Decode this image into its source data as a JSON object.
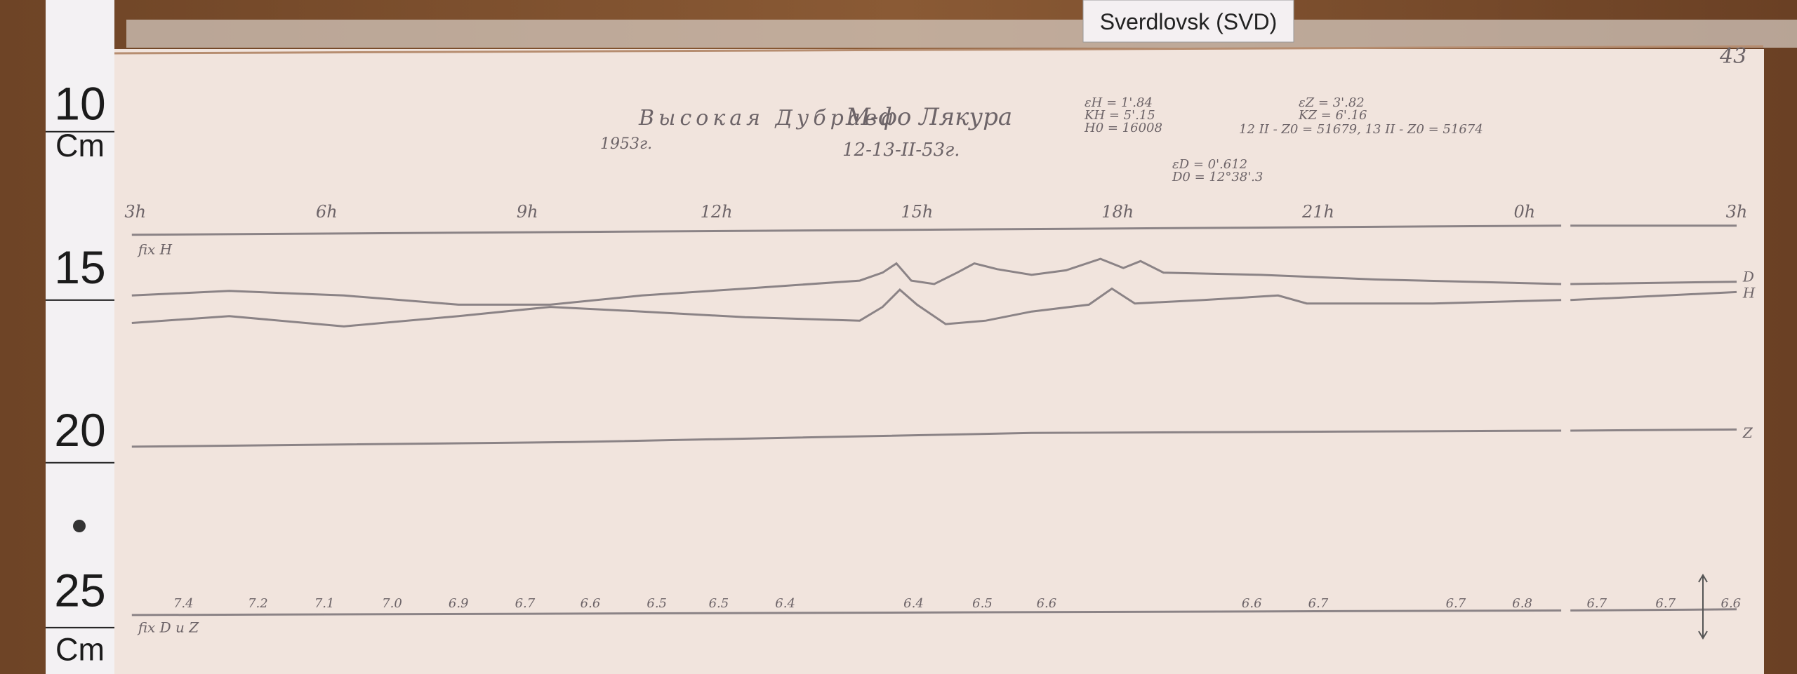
{
  "label_tag": "Sverdlovsk (SVD)",
  "page_number": "43",
  "ruler": {
    "labels": [
      "10",
      "Cm",
      "15",
      "20",
      "25",
      "Cm"
    ]
  },
  "magnetogram": {
    "title": "Высокая Дубрава",
    "year": "1953г.",
    "observatory": "М-фо Лякура",
    "date": "12-13-II-53г.",
    "constants": [
      "εH = 1'.84",
      "KH = 5'.15",
      "H0 = 16008",
      "εZ = 3'.82",
      "KZ = 6'.16",
      "12 II - Z0 = 51679, 13 II - Z0 = 51674",
      "εD = 0'.612",
      "D0 = 12°38'.3"
    ],
    "hours": [
      "3h",
      "6h",
      "9h",
      "12h",
      "15h",
      "18h",
      "21h",
      "0h",
      "3h"
    ],
    "traces": [
      "fix H",
      "D",
      "H",
      "Z",
      "fix D и Z"
    ],
    "temperatures": [
      "7.4",
      "7.2",
      "7.1",
      "7.0",
      "6.9",
      "6.7",
      "6.6",
      "6.5",
      "6.5",
      "6.4",
      "6.4",
      "6.5",
      "6.6",
      "6.6",
      "6.7",
      "6.7",
      "6.8",
      "6.7",
      "6.7",
      "6.6"
    ]
  }
}
